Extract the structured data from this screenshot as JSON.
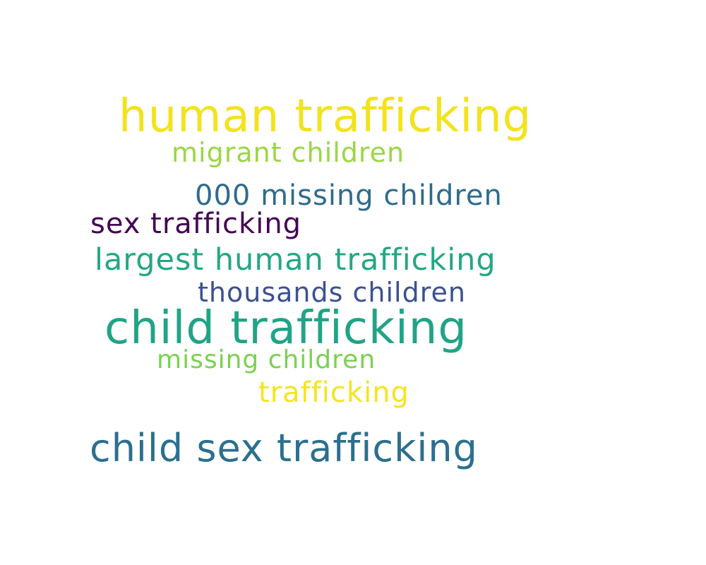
{
  "words": [
    {
      "text": "human trafficking",
      "color": "#f2e31c"
    },
    {
      "text": "migrant children",
      "color": "#9cd645"
    },
    {
      "text": "000 missing children",
      "color": "#2f6b8d"
    },
    {
      "text": "sex trafficking",
      "color": "#440154"
    },
    {
      "text": "largest human trafficking",
      "color": "#22a784"
    },
    {
      "text": "thousands children",
      "color": "#3b5190"
    },
    {
      "text": "child trafficking",
      "color": "#20a486"
    },
    {
      "text": "missing children",
      "color": "#7ad151"
    },
    {
      "text": "trafficking",
      "color": "#f5e51e"
    },
    {
      "text": "child sex trafficking",
      "color": "#2c6f8e"
    }
  ]
}
